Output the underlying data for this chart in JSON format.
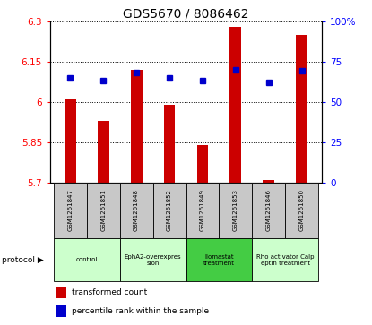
{
  "title": "GDS5670 / 8086462",
  "samples": [
    "GSM1261847",
    "GSM1261851",
    "GSM1261848",
    "GSM1261852",
    "GSM1261849",
    "GSM1261853",
    "GSM1261846",
    "GSM1261850"
  ],
  "bar_values": [
    6.01,
    5.93,
    6.12,
    5.99,
    5.84,
    6.28,
    5.71,
    6.25
  ],
  "percentile_values": [
    65,
    63,
    68,
    65,
    63,
    70,
    62,
    69
  ],
  "ylim_left": [
    5.7,
    6.3
  ],
  "ylim_right": [
    0,
    100
  ],
  "yticks_left": [
    5.7,
    5.85,
    6.0,
    6.15,
    6.3
  ],
  "ytick_labels_left": [
    "5.7",
    "5.85",
    "6",
    "6.15",
    "6.3"
  ],
  "yticks_right": [
    0,
    25,
    50,
    75,
    100
  ],
  "ytick_labels_right": [
    "0",
    "25",
    "50",
    "75",
    "100%"
  ],
  "bar_color": "#cc0000",
  "dot_color": "#0000cc",
  "bar_bottom": 5.7,
  "protocols": [
    {
      "label": "control",
      "span": [
        0,
        2
      ],
      "color": "#ccffcc"
    },
    {
      "label": "EphA2-overexpres\nsion",
      "span": [
        2,
        4
      ],
      "color": "#ccffcc"
    },
    {
      "label": "Ilomastat\ntreatment",
      "span": [
        4,
        6
      ],
      "color": "#44cc44"
    },
    {
      "label": "Rho activator Calp\neptin treatment",
      "span": [
        6,
        8
      ],
      "color": "#ccffcc"
    }
  ],
  "legend_items": [
    {
      "color": "#cc0000",
      "label": "transformed count"
    },
    {
      "color": "#0000cc",
      "label": "percentile rank within the sample"
    }
  ],
  "protocol_label": "protocol",
  "label_bg_color": "#c8c8c8"
}
